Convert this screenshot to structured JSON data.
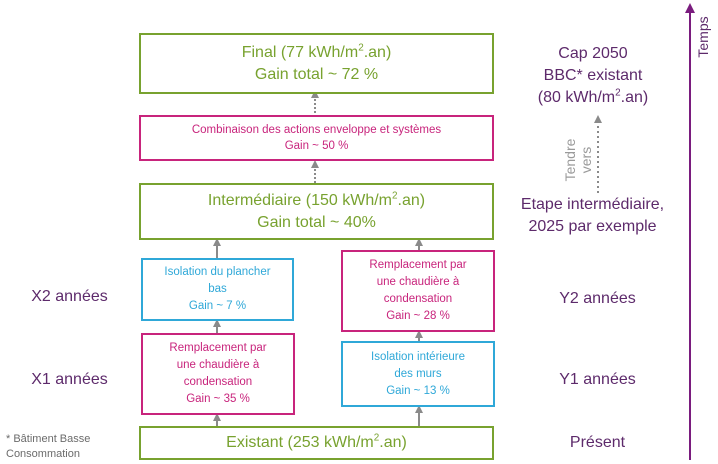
{
  "final": {
    "line1_pre": "Final (77 kWh/m",
    "line1_sup": "2",
    "line1_post": ".an)",
    "line2": "Gain total ~ 72 %"
  },
  "combinaison": {
    "line1": "Combinaison des actions enveloppe et systèmes",
    "line2": "Gain ~ 50 %"
  },
  "intermediaire": {
    "line1_pre": "Intermédiaire (150 kWh/m",
    "line1_sup": "2",
    "line1_post": ".an)",
    "line2": "Gain total ~ 40%"
  },
  "isolation_plancher": {
    "line1": "Isolation du plancher",
    "line2": "bas",
    "line3": "Gain ~ 7 %"
  },
  "remplacement_right": {
    "line1": "Remplacement par",
    "line2": "une chaudière à",
    "line3": "condensation",
    "line4": "Gain ~ 28 %"
  },
  "remplacement_left": {
    "line1": "Remplacement par",
    "line2": "une chaudière à",
    "line3": "condensation",
    "line4": "Gain ~ 35 %"
  },
  "isolation_murs": {
    "line1": "Isolation intérieure",
    "line2": "des murs",
    "line3": "Gain ~ 13 %"
  },
  "existant": {
    "pre": "Existant (253 kWh/m",
    "sup": "2",
    "post": ".an)"
  },
  "labels": {
    "cap_line1": "Cap 2050",
    "cap_line2": "BBC* existant",
    "cap_line3_pre": "(80 kWh/m",
    "cap_line3_sup": "2",
    "cap_line3_post": ".an)",
    "etape_line1": "Etape intermédiaire,",
    "etape_line2": "2025 par exemple",
    "x2": "X2 années",
    "x1": "X1 années",
    "y2": "Y2 années",
    "y1": "Y1 années",
    "present": "Présent",
    "tendre": "Tendre",
    "vers": "vers",
    "temps": "Temps"
  },
  "footnote": {
    "line1": "* Bâtiment Basse",
    "line2": "Consommation"
  },
  "colors": {
    "green": "#78a22f",
    "pink": "#c8247c",
    "blue": "#2fa8d8",
    "purple": "#5d2a6b",
    "arrow": "#8a8a8a"
  }
}
